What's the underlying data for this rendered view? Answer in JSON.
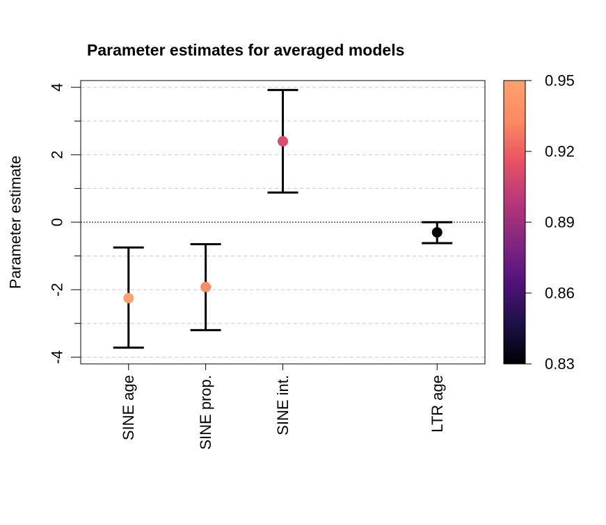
{
  "chart_data": {
    "type": "scatter",
    "title": "Parameter estimates for averaged models",
    "xlabel": "",
    "ylabel": "Parameter estimate",
    "ylim": [
      -4.2,
      4.2
    ],
    "y_ticks": [
      -4,
      -2,
      0,
      2,
      4
    ],
    "y_tick_labels": [
      "-4",
      "-2",
      "0",
      "2",
      "4"
    ],
    "grid": true,
    "reference_line_y": 0,
    "points": [
      {
        "label": "SINE age",
        "x": 1.0,
        "estimate": -2.25,
        "lower": -3.72,
        "upper": -0.75,
        "color_value": 0.95
      },
      {
        "label": "SINE prop.",
        "x": 2.0,
        "estimate": -1.92,
        "lower": -3.2,
        "upper": -0.65,
        "color_value": 0.935
      },
      {
        "label": "SINE int.",
        "x": 3.0,
        "estimate": 2.4,
        "lower": 0.88,
        "upper": 3.92,
        "color_value": 0.912
      },
      {
        "label": "LTR age",
        "x": 5.0,
        "estimate": -0.3,
        "lower": -0.62,
        "upper": 0.0,
        "color_value": 0.83
      }
    ],
    "xlim": [
      0.38,
      5.62
    ],
    "colorbar": {
      "range": [
        0.83,
        0.95
      ],
      "ticks": [
        "0.95",
        "0.92",
        "0.89",
        "0.86",
        "0.83"
      ],
      "tick_values": [
        0.95,
        0.92,
        0.89,
        0.86,
        0.83
      ],
      "palette": [
        "#000004",
        "#1d1147",
        "#51127c",
        "#832681",
        "#b73779",
        "#e75263",
        "#fc8961",
        "#fea16e"
      ]
    }
  }
}
